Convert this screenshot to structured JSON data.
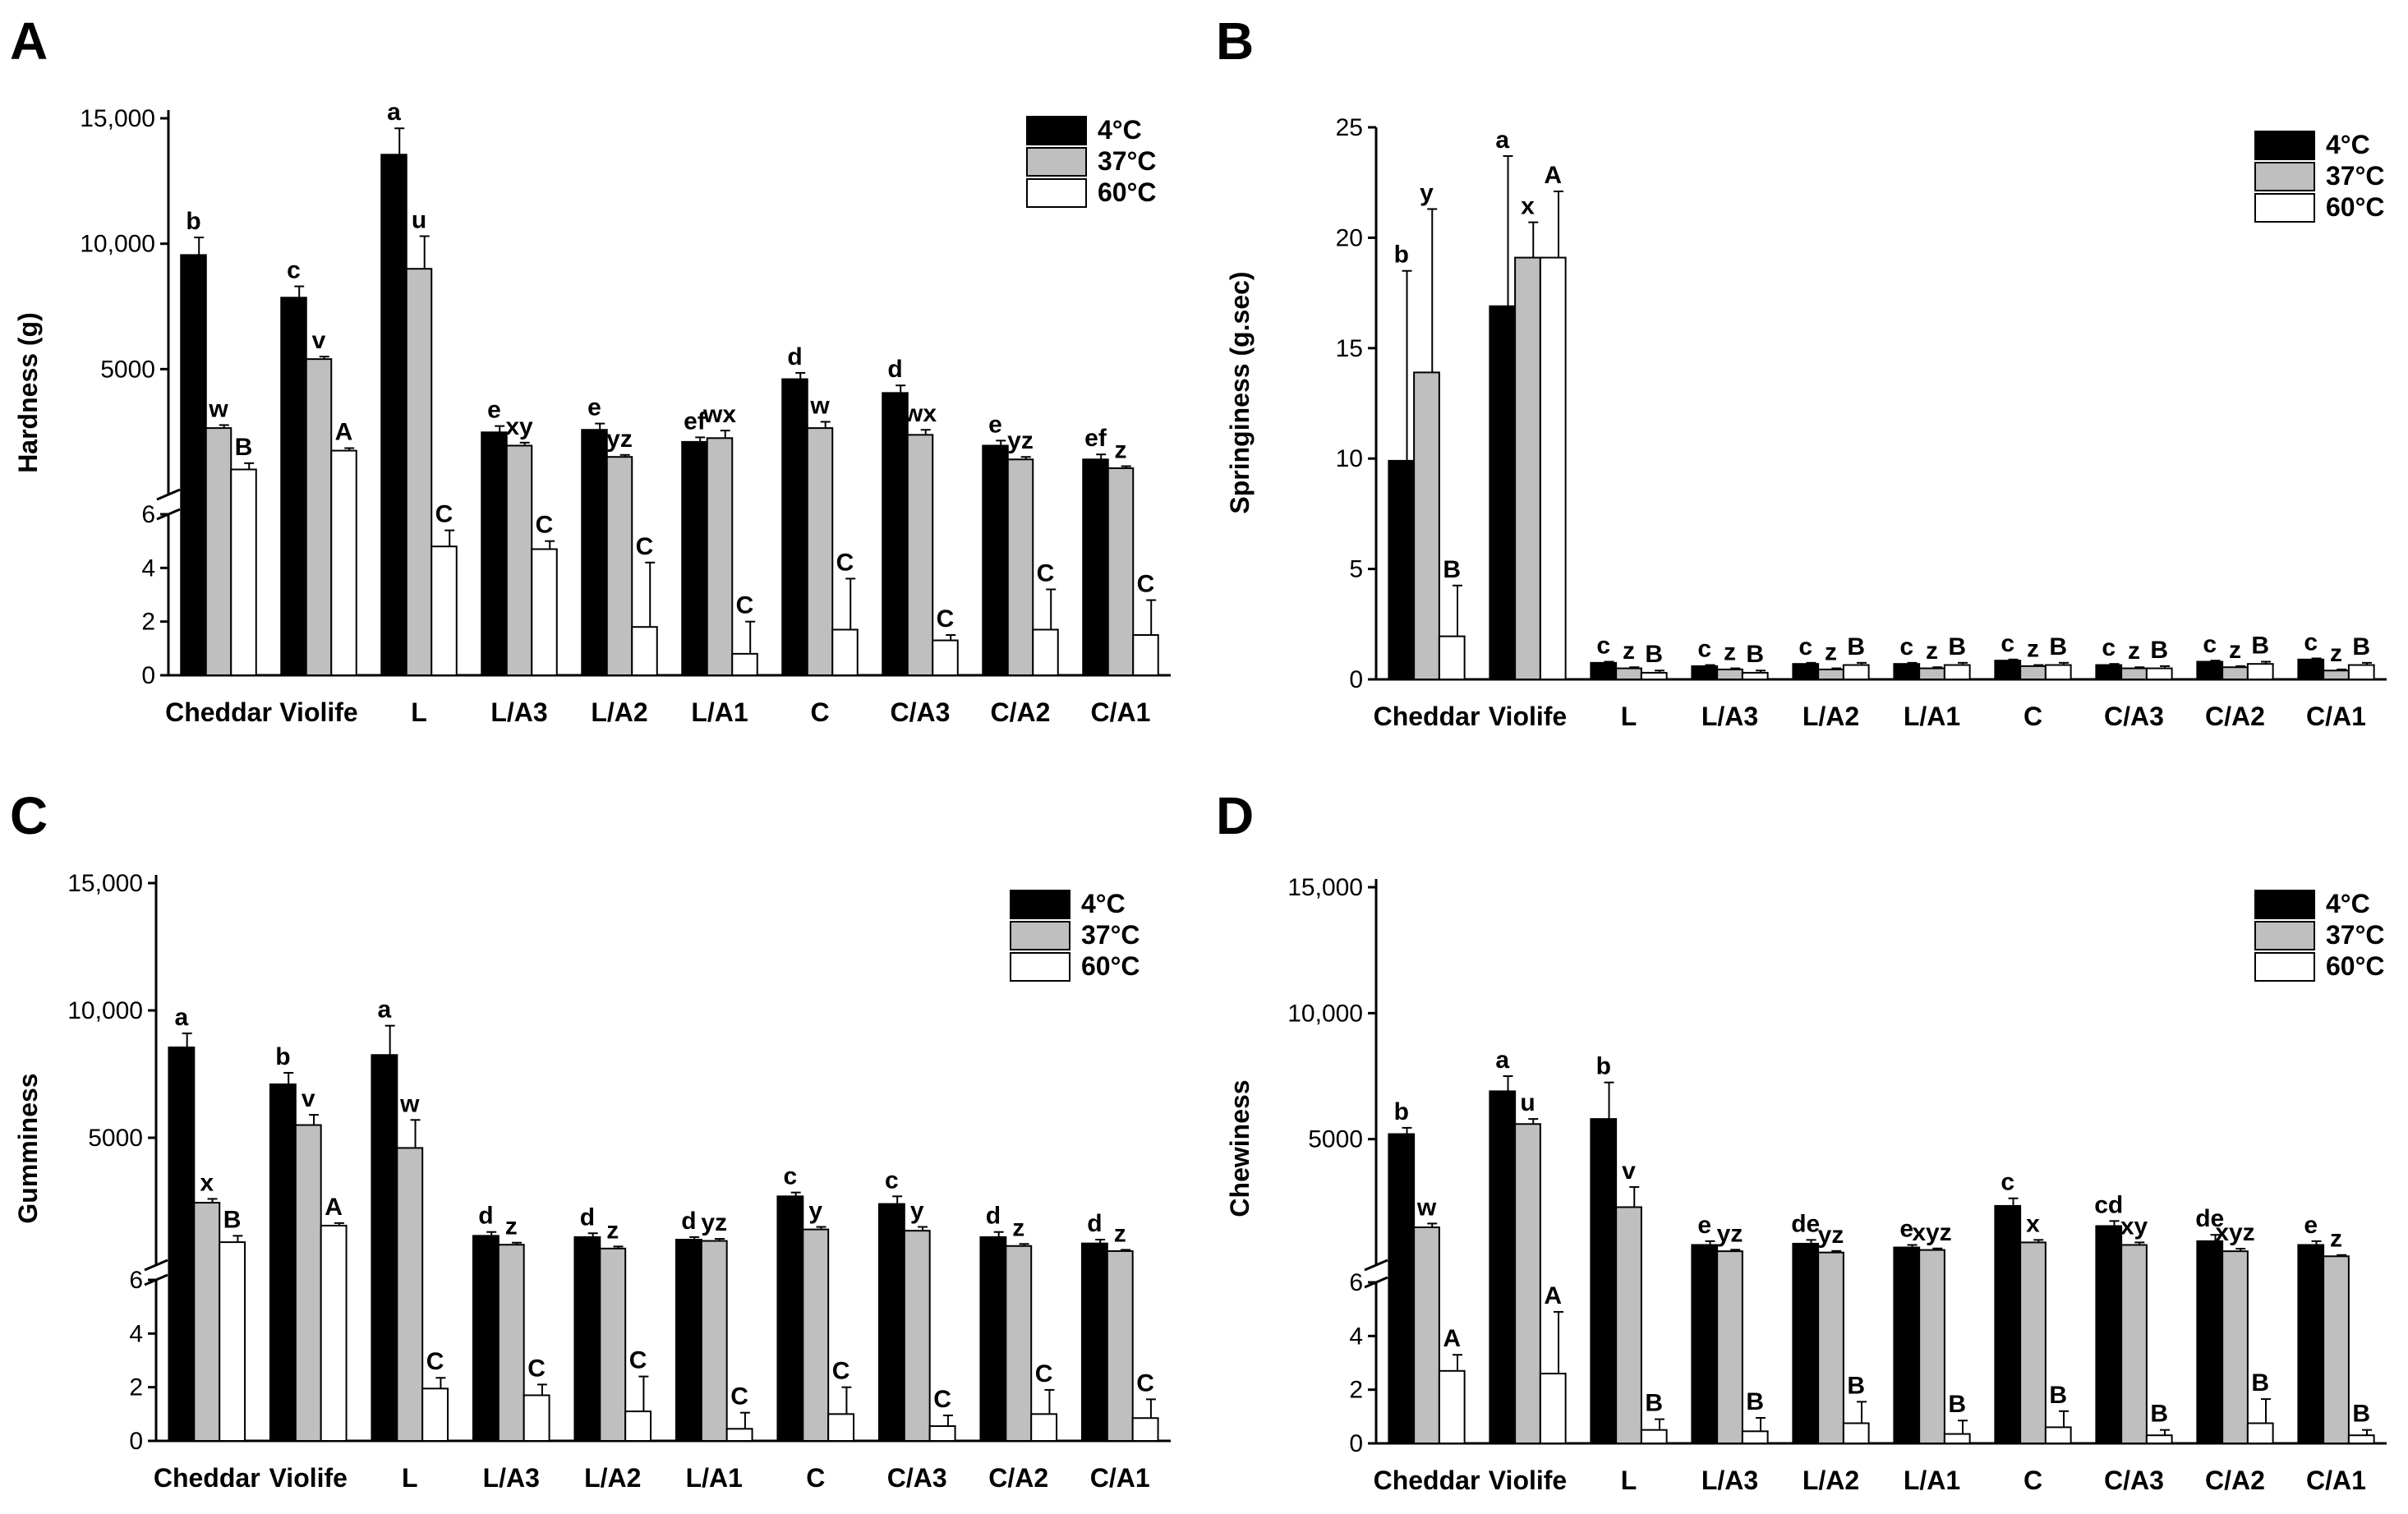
{
  "figure": {
    "series_names": [
      "4°C",
      "37°C",
      "60°C"
    ],
    "series_colors": [
      "#000000",
      "#bfbfbf",
      "#ffffff"
    ]
  },
  "chart_data": [
    {
      "panel": "A",
      "type": "bar",
      "ylabel": "Hardness (g)",
      "broken_axis": true,
      "lower_ylim": [
        0,
        6
      ],
      "lower_ticks": [
        "0",
        "2",
        "4",
        "6"
      ],
      "upper_ylim": [
        0,
        15000
      ],
      "upper_ticks": [
        "5000",
        "10,000",
        "15,000"
      ],
      "categories": [
        "Cheddar",
        "Violife",
        "L",
        "L/A3",
        "L/A2",
        "L/A1",
        "C",
        "C/A3",
        "C/A2",
        "C/A1"
      ],
      "series": [
        {
          "name": "4°C",
          "values": [
            9550,
            7850,
            13550,
            2480,
            2580,
            2100,
            4600,
            4050,
            1950,
            1400
          ],
          "errors": [
            700,
            450,
            1050,
            250,
            250,
            180,
            250,
            300,
            200,
            200
          ],
          "letters": [
            "b",
            "c",
            "a",
            "e",
            "e",
            "ef",
            "d",
            "d",
            "e",
            "ef"
          ]
        },
        {
          "name": "37°C",
          "values": [
            2650,
            5400,
            9000,
            1950,
            1500,
            2250,
            2650,
            2380,
            1400,
            1050
          ],
          "errors": [
            120,
            100,
            1300,
            120,
            80,
            300,
            250,
            200,
            100,
            80
          ],
          "letters": [
            "w",
            "v",
            "u",
            "xy",
            "yz",
            "wx",
            "w",
            "wx",
            "yz",
            "z"
          ]
        },
        {
          "name": "60°C",
          "values": [
            1000,
            1750,
            4.8,
            4.7,
            1.8,
            0.8,
            1.7,
            1.3,
            1.7,
            1.5
          ],
          "errors": [
            250,
            100,
            0.6,
            0.3,
            2.4,
            1.2,
            1.9,
            0.2,
            1.5,
            1.3
          ],
          "letters": [
            "B",
            "A",
            "C",
            "C",
            "C",
            "C",
            "C",
            "C",
            "C",
            "C"
          ]
        }
      ]
    },
    {
      "panel": "B",
      "type": "bar",
      "ylabel": "Springiness (g.sec)",
      "broken_axis": false,
      "ylim": [
        0,
        25
      ],
      "ticks": [
        "0",
        "5",
        "10",
        "15",
        "20",
        "25"
      ],
      "categories": [
        "Cheddar",
        "Violife",
        "L",
        "L/A3",
        "L/A2",
        "L/A1",
        "C",
        "C/A3",
        "C/A2",
        "C/A1"
      ],
      "series": [
        {
          "name": "4°C",
          "values": [
            9.9,
            16.9,
            0.75,
            0.6,
            0.7,
            0.7,
            0.85,
            0.65,
            0.8,
            0.9
          ],
          "errors": [
            8.6,
            6.8,
            0.05,
            0.05,
            0.05,
            0.05,
            0.05,
            0.05,
            0.05,
            0.05
          ],
          "letters": [
            "b",
            "a",
            "c",
            "c",
            "c",
            "c",
            "c",
            "c",
            "c",
            "c"
          ]
        },
        {
          "name": "37°C",
          "values": [
            13.9,
            19.1,
            0.5,
            0.45,
            0.45,
            0.5,
            0.6,
            0.5,
            0.55,
            0.4
          ],
          "errors": [
            7.4,
            1.6,
            0.05,
            0.05,
            0.05,
            0.05,
            0.05,
            0.05,
            0.05,
            0.05
          ],
          "letters": [
            "y",
            "x",
            "z",
            "z",
            "z",
            "z",
            "z",
            "z",
            "z",
            "z"
          ]
        },
        {
          "name": "60°C",
          "values": [
            1.95,
            19.1,
            0.3,
            0.3,
            0.65,
            0.65,
            0.65,
            0.5,
            0.7,
            0.65
          ],
          "errors": [
            2.3,
            3.0,
            0.1,
            0.1,
            0.1,
            0.1,
            0.1,
            0.1,
            0.1,
            0.1
          ],
          "letters": [
            "B",
            "A",
            "B",
            "B",
            "B",
            "B",
            "B",
            "B",
            "B",
            "B"
          ]
        }
      ]
    },
    {
      "panel": "C",
      "type": "bar",
      "ylabel": "Gumminess",
      "broken_axis": true,
      "lower_ylim": [
        0,
        6
      ],
      "lower_ticks": [
        "0",
        "2",
        "4",
        "6"
      ],
      "upper_ylim": [
        0,
        15000
      ],
      "upper_ticks": [
        "5000",
        "10,000",
        "15,000"
      ],
      "categories": [
        "Cheddar",
        "Violife",
        "L",
        "L/A3",
        "L/A2",
        "L/A1",
        "C",
        "C/A3",
        "C/A2",
        "C/A1"
      ],
      "series": [
        {
          "name": "4°C",
          "values": [
            8550,
            7100,
            8250,
            1150,
            1100,
            1000,
            2700,
            2400,
            1100,
            850
          ],
          "errors": [
            550,
            450,
            1150,
            150,
            150,
            100,
            150,
            300,
            200,
            150
          ],
          "letters": [
            "a",
            "b",
            "a",
            "d",
            "d",
            "d",
            "c",
            "c",
            "d",
            "d"
          ]
        },
        {
          "name": "37°C",
          "values": [
            2450,
            5500,
            4600,
            800,
            650,
            950,
            1400,
            1350,
            750,
            550
          ],
          "errors": [
            150,
            400,
            1100,
            80,
            80,
            80,
            100,
            150,
            80,
            50
          ],
          "letters": [
            "x",
            "v",
            "w",
            "z",
            "z",
            "yz",
            "y",
            "y",
            "z",
            "z"
          ]
        },
        {
          "name": "60°C",
          "values": [
            900,
            1550,
            1.95,
            1.7,
            1.1,
            0.45,
            1.0,
            0.55,
            1.0,
            0.85
          ],
          "errors": [
            250,
            100,
            0.4,
            0.4,
            1.3,
            0.6,
            1.0,
            0.4,
            0.9,
            0.7
          ],
          "letters": [
            "B",
            "A",
            "C",
            "C",
            "C",
            "C",
            "C",
            "C",
            "C",
            "C"
          ]
        }
      ]
    },
    {
      "panel": "D",
      "type": "bar",
      "ylabel": "Chewiness",
      "broken_axis": true,
      "lower_ylim": [
        0,
        6
      ],
      "lower_ticks": [
        "0",
        "2",
        "4",
        "6"
      ],
      "upper_ylim": [
        0,
        15000
      ],
      "upper_ticks": [
        "5000",
        "10,000",
        "15,000"
      ],
      "categories": [
        "Cheddar",
        "Violife",
        "L",
        "L/A3",
        "L/A2",
        "L/A1",
        "C",
        "C/A3",
        "C/A2",
        "C/A1"
      ],
      "series": [
        {
          "name": "4°C",
          "values": [
            5200,
            6900,
            5800,
            800,
            850,
            700,
            2350,
            1550,
            950,
            800
          ],
          "errors": [
            250,
            600,
            1450,
            150,
            150,
            100,
            300,
            200,
            250,
            150
          ],
          "letters": [
            "b",
            "a",
            "b",
            "e",
            "de",
            "e",
            "c",
            "cd",
            "de",
            "e"
          ]
        },
        {
          "name": "37°C",
          "values": [
            1500,
            5600,
            2300,
            550,
            500,
            600,
            900,
            800,
            550,
            350
          ],
          "errors": [
            150,
            200,
            800,
            60,
            60,
            60,
            100,
            100,
            100,
            50
          ],
          "letters": [
            "w",
            "u",
            "v",
            "yz",
            "yz",
            "xyz",
            "x",
            "xy",
            "xyz",
            "z"
          ]
        },
        {
          "name": "60°C",
          "values": [
            2.7,
            2.6,
            0.5,
            0.45,
            0.75,
            0.35,
            0.6,
            0.3,
            0.75,
            0.3
          ],
          "errors": [
            0.6,
            2.3,
            0.4,
            0.5,
            0.8,
            0.5,
            0.6,
            0.2,
            0.9,
            0.2
          ],
          "letters": [
            "A",
            "A",
            "B",
            "B",
            "B",
            "B",
            "B",
            "B",
            "B",
            "B"
          ]
        }
      ]
    }
  ]
}
